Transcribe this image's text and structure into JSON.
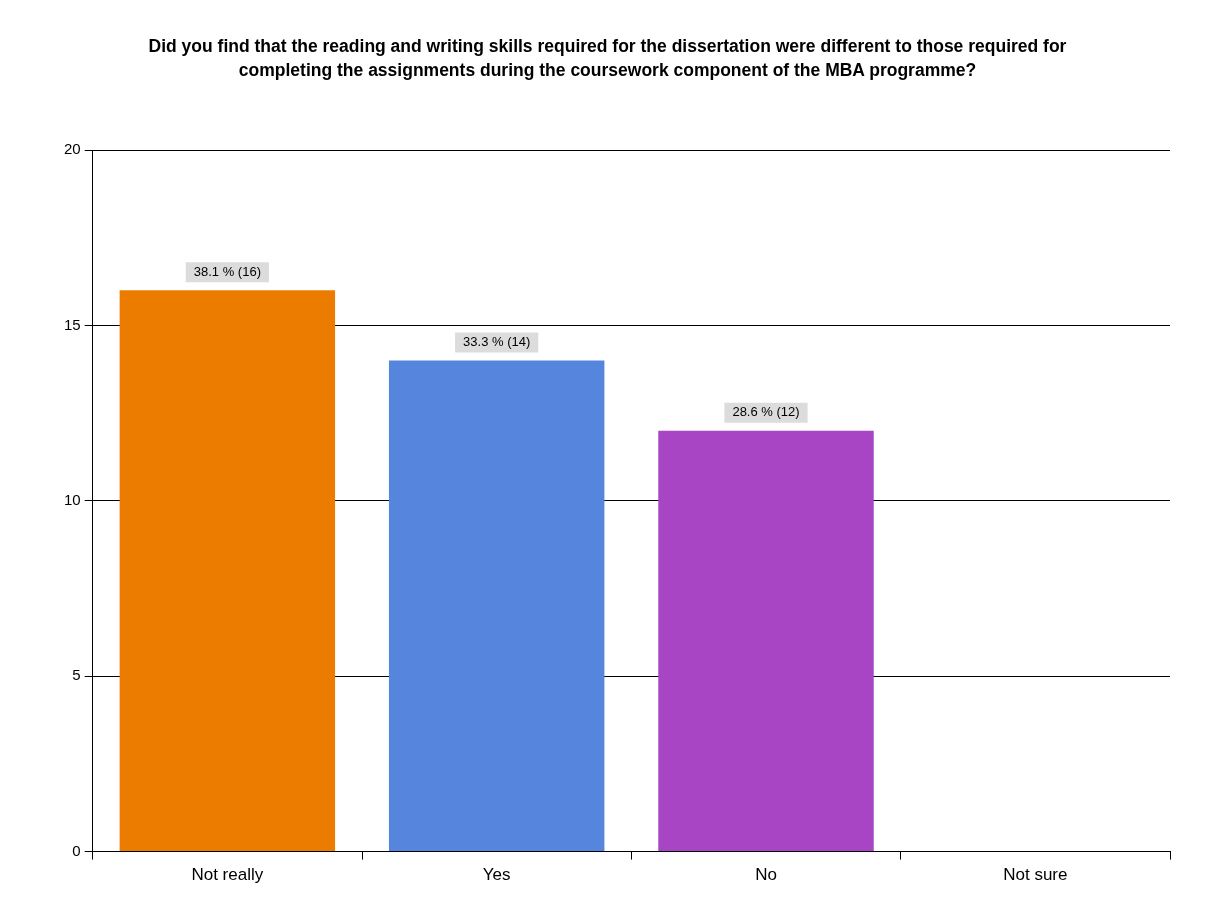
{
  "chart_data": {
    "type": "bar",
    "title": "Did you find that the reading and writing skills required for the dissertation were different to those required for completing the assignments during the coursework component of the MBA programme?",
    "categories": [
      "Not really",
      "Yes",
      "No",
      "Not sure"
    ],
    "values": [
      16,
      14,
      12,
      0
    ],
    "colors": [
      "#ec7c00",
      "#5585dd",
      "#a845c5",
      "#a0a0a0"
    ],
    "value_labels": [
      "38.1 % (16)",
      "33.3 % (14)",
      "28.6 % (12)",
      null
    ],
    "ylim": [
      0,
      20
    ],
    "yticks": [
      0,
      5,
      10,
      15,
      20
    ],
    "grid": "y",
    "legend": false
  }
}
